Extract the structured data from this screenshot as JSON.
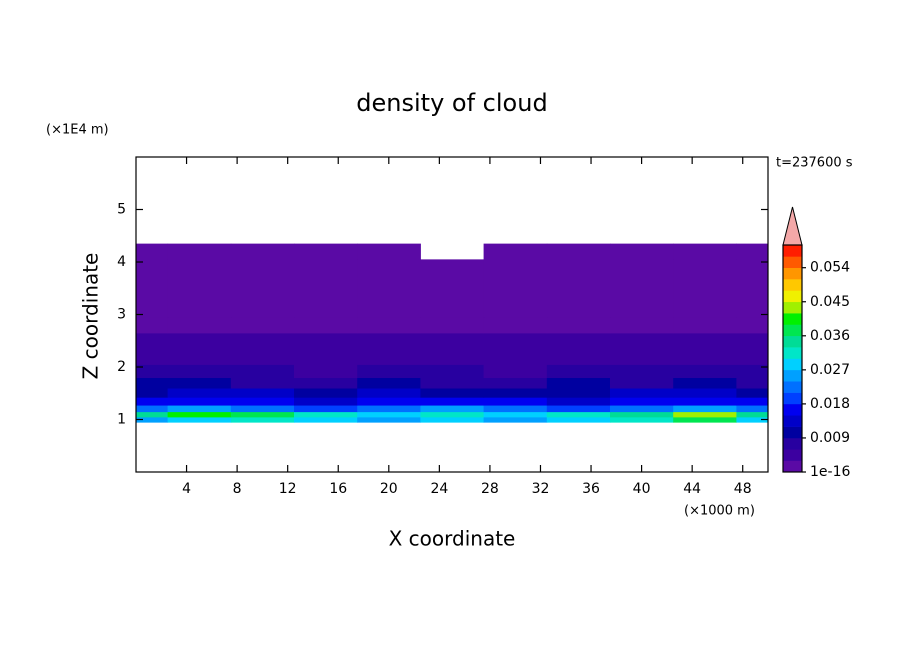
{
  "chart_data": {
    "type": "contour",
    "title": "density of cloud",
    "x_label": "X coordinate",
    "y_label": "Z coordinate",
    "x_unit": "(×1000 m)",
    "y_unit": "(×1E4 m)",
    "time_label": "t=237600 s",
    "xlim": [
      0,
      50
    ],
    "xticks": [
      4,
      8,
      12,
      16,
      20,
      24,
      28,
      32,
      36,
      40,
      44,
      48
    ],
    "ylim": [
      0,
      6
    ],
    "yticks": [
      1,
      2,
      3,
      4,
      5
    ],
    "x": [
      0,
      5,
      10,
      15,
      20,
      25,
      30,
      35,
      40,
      45,
      50
    ],
    "y": [
      1.0,
      1.1,
      1.2,
      1.35,
      1.5,
      1.7,
      1.9,
      2.2,
      2.5,
      2.8,
      3.1,
      3.5,
      3.9,
      4.2
    ],
    "values": [
      [
        0.024,
        0.027,
        0.03,
        0.027,
        0.024,
        0.027,
        0.024,
        0.027,
        0.03,
        0.036,
        0.027
      ],
      [
        0.033,
        0.039,
        0.036,
        0.03,
        0.027,
        0.03,
        0.027,
        0.03,
        0.033,
        0.042,
        0.033
      ],
      [
        0.021,
        0.024,
        0.021,
        0.02,
        0.021,
        0.024,
        0.021,
        0.02,
        0.021,
        0.024,
        0.021
      ],
      [
        0.015,
        0.017,
        0.016,
        0.014,
        0.015,
        0.016,
        0.015,
        0.014,
        0.016,
        0.017,
        0.015
      ],
      [
        0.011,
        0.013,
        0.012,
        0.01,
        0.012,
        0.011,
        0.01,
        0.011,
        0.012,
        0.013,
        0.011
      ],
      [
        0.009,
        0.01,
        0.008,
        0.008,
        0.009,
        0.008,
        0.007,
        0.009,
        0.008,
        0.009,
        0.008
      ],
      [
        0.006,
        0.007,
        0.006,
        0.005,
        0.006,
        0.006,
        0.005,
        0.006,
        0.007,
        0.006,
        0.006
      ],
      [
        0.004,
        0.005,
        0.004,
        0.004,
        0.004,
        0.004,
        0.004,
        0.004,
        0.005,
        0.004,
        0.004
      ],
      [
        0.003,
        0.004,
        0.003,
        0.003,
        0.003,
        0.003,
        0.003,
        0.003,
        0.003,
        0.003,
        0.003
      ],
      [
        0.002,
        0.002,
        0.002,
        0.002,
        0.002,
        0.002,
        0.002,
        0.002,
        0.002,
        0.002,
        0.002
      ],
      [
        0.001,
        0.001,
        0.001,
        0.001,
        0.001,
        0.001,
        0.001,
        0.001,
        0.001,
        0.001,
        0.001
      ],
      [
        0.001,
        0.001,
        0.001,
        0.001,
        0.001,
        0.001,
        0.001,
        0.001,
        0.001,
        0.001,
        0.001
      ],
      [
        0.001,
        0.001,
        0.001,
        0.001,
        0.001,
        0.001,
        0.001,
        0.001,
        0.001,
        0.001,
        0.001
      ],
      [
        0.001,
        0.001,
        0.001,
        0.001,
        0.001,
        null,
        0.001,
        0.001,
        0.001,
        0.001,
        0.001
      ]
    ],
    "colorbar": {
      "clim": [
        0,
        0.06
      ],
      "ticks": [
        {
          "value": 1e-16,
          "label": "1e-16"
        },
        0.009,
        0.018,
        0.027,
        0.036,
        0.045,
        0.054
      ],
      "colors": [
        "#5a0aa5",
        "#3c00a0",
        "#2800a0",
        "#0000a0",
        "#0000c8",
        "#0000f0",
        "#0040ff",
        "#0070ff",
        "#00a0ff",
        "#00d0ff",
        "#00e6c8",
        "#00dc96",
        "#00e650",
        "#00f000",
        "#a0f000",
        "#f0f000",
        "#ffc800",
        "#ff9600",
        "#ff5a00",
        "#ff1e00"
      ],
      "extend_color": "#f4a8a8"
    }
  }
}
